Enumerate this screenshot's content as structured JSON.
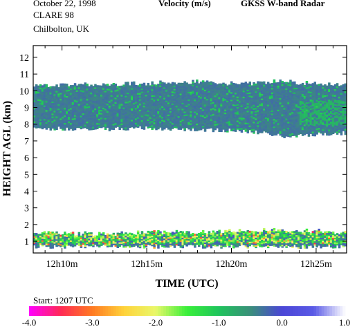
{
  "header": {
    "date": "October  22, 1998",
    "campaign": "CLARE 98",
    "location": "Chilbolton, UK",
    "quantity": "Velocity (m/s)",
    "instrument": "GKSS  W-band Radar"
  },
  "chart_data": {
    "type": "heatmap",
    "title": "Velocity (m/s)",
    "xlabel": "TIME (UTC)",
    "ylabel": "HEIGHT AGL (km)",
    "x_unit": "minutes after 12h00 UTC",
    "xlim": [
      8.3,
      26.8
    ],
    "ylim": [
      0.3,
      12.7
    ],
    "x_tick_labels": [
      {
        "x": 10,
        "label": "12h10m"
      },
      {
        "x": 15,
        "label": "12h15m"
      },
      {
        "x": 20,
        "label": "12h20m"
      },
      {
        "x": 25,
        "label": "12h25m"
      }
    ],
    "y_ticks": [
      1,
      2,
      3,
      4,
      5,
      6,
      7,
      8,
      9,
      10,
      11,
      12
    ],
    "grid": false,
    "start_label": "Start:  1207 UTC",
    "colorbar": {
      "range": [
        -4.0,
        1.0
      ],
      "tick_labels": [
        "-4.0",
        "-3.0",
        "-2.0",
        "-1.0",
        "0.0",
        "1.0"
      ],
      "tick_values": [
        -4,
        -3,
        -2,
        -1,
        0,
        1
      ],
      "colors": [
        "#ff00ff",
        "#ff2a55",
        "#ff7a22",
        "#ffd23a",
        "#e9f86a",
        "#39ef3a",
        "#1fc45c",
        "#3a8f7a",
        "#4b46d6",
        "#5a5ae6",
        "#ffffff"
      ]
    },
    "regions": [
      {
        "name": "upper cloud layer",
        "typical_velocity": -0.5,
        "velocity_range": [
          -1.0,
          0.0
        ],
        "base_km": [
          [
            8.4,
            7.8
          ],
          [
            12,
            7.7
          ],
          [
            15,
            7.8
          ],
          [
            18,
            7.7
          ],
          [
            21,
            7.6
          ],
          [
            23,
            7.3
          ],
          [
            24.5,
            7.4
          ],
          [
            26.8,
            7.5
          ]
        ],
        "top_km": [
          [
            8.4,
            10.3
          ],
          [
            12,
            10.3
          ],
          [
            15,
            10.4
          ],
          [
            18,
            10.5
          ],
          [
            21,
            10.4
          ],
          [
            23,
            10.5
          ],
          [
            24.5,
            10.4
          ],
          [
            26.8,
            10.3
          ]
        ]
      },
      {
        "name": "lower layer",
        "typical_velocity": -2.0,
        "velocity_range": [
          -4.0,
          0.0
        ],
        "base_km": [
          [
            8.4,
            0.7
          ],
          [
            26.8,
            0.7
          ]
        ],
        "top_km": [
          [
            8.4,
            1.5
          ],
          [
            12,
            1.4
          ],
          [
            15,
            1.5
          ],
          [
            18,
            1.5
          ],
          [
            21,
            1.6
          ],
          [
            24,
            1.6
          ],
          [
            26.8,
            1.5
          ]
        ]
      }
    ]
  }
}
